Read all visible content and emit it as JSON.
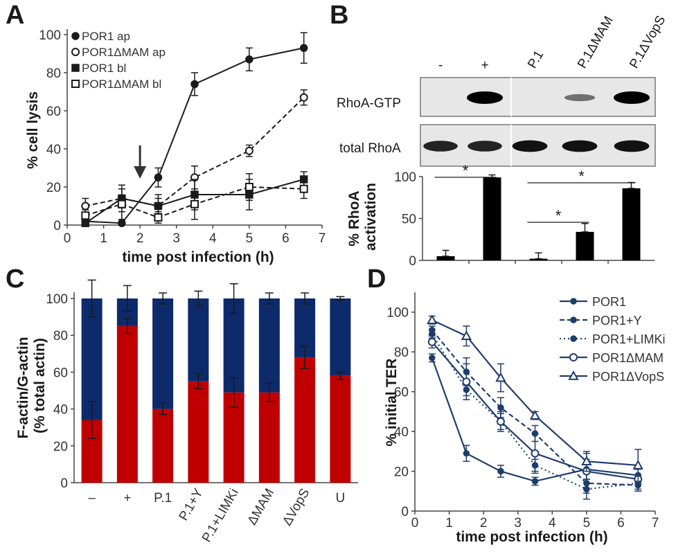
{
  "panels": [
    {
      "letter": "A"
    },
    {
      "letter": "B"
    },
    {
      "letter": "C"
    },
    {
      "letter": "D"
    }
  ],
  "colors": {
    "axis": "#444444",
    "ink": "#1a1a1a",
    "bar_black": "#000000",
    "f_actin": "#c00000",
    "g_actin": "#0d2a6b",
    "line_d": "#1f3d6b"
  },
  "annotations": {
    "arrow_time_h": 2,
    "significance_mark": "*"
  },
  "blot": {
    "rows": [
      {
        "label": "RhoA-GTP",
        "band_intensity": [
          0.0,
          1.0,
          0.0,
          0.35,
          1.0
        ]
      },
      {
        "label": "total RhoA",
        "band_intensity": [
          0.8,
          0.8,
          0.9,
          0.9,
          0.9
        ]
      }
    ]
  },
  "chart_data": [
    {
      "panel": "A",
      "type": "line",
      "xlabel": "time post infection (h)",
      "ylabel": "% cell lysis",
      "xlim": [
        0,
        7
      ],
      "ylim": [
        0,
        100
      ],
      "xticks": [
        "0",
        "1",
        "2",
        "3",
        "4",
        "5",
        "6",
        "7"
      ],
      "yticks": [
        "0",
        "20",
        "40",
        "60",
        "80",
        "100"
      ],
      "legend_position": "top-left",
      "series": [
        {
          "name": "POR1 ap",
          "marker": "filled-circle",
          "line": "solid",
          "x": [
            0.5,
            1.5,
            2.5,
            3.5,
            5,
            6.5
          ],
          "y": [
            2,
            1,
            25,
            74,
            87,
            93
          ],
          "err": [
            3,
            1,
            5,
            6,
            6,
            8
          ]
        },
        {
          "name": "POR1ΔMAM ap",
          "marker": "open-circle",
          "line": "dashed",
          "x": [
            0.5,
            1.5,
            2.5,
            3.5,
            5,
            6.5
          ],
          "y": [
            10,
            14,
            10,
            25,
            39,
            67
          ],
          "err": [
            4,
            5,
            4,
            6,
            3,
            4
          ]
        },
        {
          "name": "POR1 bl",
          "marker": "filled-square",
          "line": "solid",
          "x": [
            0.5,
            1.5,
            2.5,
            3.5,
            5,
            6.5
          ],
          "y": [
            1,
            14,
            10,
            16,
            16,
            24
          ],
          "err": [
            3,
            7,
            6,
            8,
            8,
            4
          ]
        },
        {
          "name": "POR1ΔMAM bl",
          "marker": "open-square",
          "line": "dashed",
          "x": [
            0.5,
            1.5,
            2.5,
            3.5,
            5,
            6.5
          ],
          "y": [
            5,
            11,
            4,
            11,
            20,
            19
          ],
          "err": [
            3,
            8,
            3,
            8,
            7,
            5
          ]
        }
      ]
    },
    {
      "panel": "B",
      "type": "bar",
      "ylabel": "% RhoA activation",
      "ylim": [
        0,
        100
      ],
      "yticks": [
        "0",
        "50",
        "100"
      ],
      "categories": [
        "-",
        "+",
        "P.1",
        "P.1ΔMAM",
        "P.1ΔVopS"
      ],
      "values": [
        5,
        99,
        2,
        34,
        86
      ],
      "err": [
        7,
        3,
        7,
        10,
        7
      ],
      "significance": [
        [
          0,
          1
        ],
        [
          2,
          3
        ],
        [
          2,
          4
        ]
      ]
    },
    {
      "panel": "C",
      "type": "bar",
      "stacked": true,
      "ylabel": "F-actin/G-actin (% total actin)",
      "ylim": [
        0,
        100
      ],
      "yticks": [
        "0",
        "20",
        "40",
        "60",
        "80",
        "100"
      ],
      "categories": [
        "–",
        "+",
        "P.1",
        "P.1+Y",
        "P.1+LIMKi",
        "ΔMAM",
        "ΔVopS",
        "U"
      ],
      "series": [
        {
          "values": [
            34,
            85,
            40,
            55,
            49,
            49,
            68,
            58
          ],
          "err": [
            10,
            4,
            3,
            4,
            8,
            5,
            6,
            2
          ]
        },
        {
          "values": [
            66,
            15,
            60,
            45,
            51,
            51,
            32,
            42
          ],
          "err": [
            10,
            7,
            3,
            4,
            8,
            3,
            3,
            1
          ]
        }
      ]
    },
    {
      "panel": "D",
      "type": "line",
      "xlabel": "time post infection (h)",
      "ylabel": "% initial TER",
      "xlim": [
        0,
        7
      ],
      "ylim": [
        0,
        110
      ],
      "xticks": [
        "0",
        "1",
        "2",
        "3",
        "4",
        "5",
        "6",
        "7"
      ],
      "yticks": [
        "0",
        "20",
        "40",
        "60",
        "80",
        "100"
      ],
      "legend_position": "top-right",
      "series": [
        {
          "name": "POR1",
          "marker": "filled-circle",
          "line": "solid",
          "x": [
            0.5,
            1.5,
            2.5,
            3.5,
            5,
            6.5
          ],
          "y": [
            77,
            29,
            20,
            15,
            21,
            18
          ],
          "err": [
            2,
            4,
            3,
            2,
            5,
            3
          ]
        },
        {
          "name": "POR1+Y",
          "marker": "filled-circle",
          "line": "dashed",
          "x": [
            0.5,
            1.5,
            2.5,
            3.5,
            5,
            6.5
          ],
          "y": [
            91,
            70,
            52,
            39,
            14,
            13
          ],
          "err": [
            2,
            7,
            5,
            4,
            5,
            3
          ]
        },
        {
          "name": "POR1+LIMKi",
          "marker": "filled-circle",
          "line": "dotted",
          "x": [
            0.5,
            1.5,
            2.5,
            3.5,
            5,
            6.5
          ],
          "y": [
            89,
            61,
            45,
            23,
            11,
            14
          ],
          "err": [
            2,
            3,
            4,
            3,
            5,
            3
          ]
        },
        {
          "name": "POR1ΔMAM",
          "marker": "open-circle",
          "line": "solid",
          "x": [
            0.5,
            1.5,
            2.5,
            3.5,
            5,
            6.5
          ],
          "y": [
            85,
            65,
            45,
            29,
            20,
            16
          ],
          "err": [
            3,
            9,
            5,
            10,
            9,
            6
          ]
        },
        {
          "name": "POR1ΔVopS",
          "marker": "open-triangle",
          "line": "solid",
          "x": [
            0.5,
            1.5,
            2.5,
            3.5,
            5,
            6.5
          ],
          "y": [
            96,
            88,
            67,
            48,
            25,
            23
          ],
          "err": [
            2,
            5,
            7,
            2,
            5,
            8
          ]
        }
      ]
    }
  ]
}
